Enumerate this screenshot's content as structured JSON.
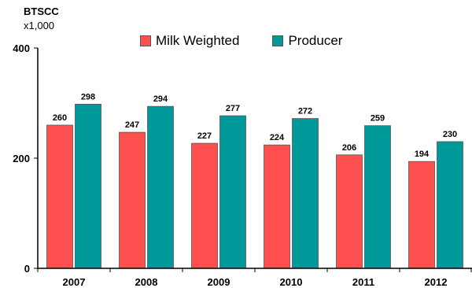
{
  "chart_data": {
    "type": "bar",
    "ylabel": "BTSCC",
    "ylabel_unit": "x1,000",
    "categories": [
      "2007",
      "2008",
      "2009",
      "2010",
      "2011",
      "2012"
    ],
    "series": [
      {
        "name": "Milk Weighted",
        "color": "#ff5050",
        "values": [
          260,
          247,
          227,
          224,
          206,
          194
        ]
      },
      {
        "name": "Producer",
        "color": "#009999",
        "values": [
          298,
          294,
          277,
          272,
          259,
          230
        ]
      }
    ],
    "ylim": [
      0,
      400
    ],
    "yticks": [
      "0",
      "200",
      "400"
    ],
    "grid": false,
    "legend": "top"
  }
}
